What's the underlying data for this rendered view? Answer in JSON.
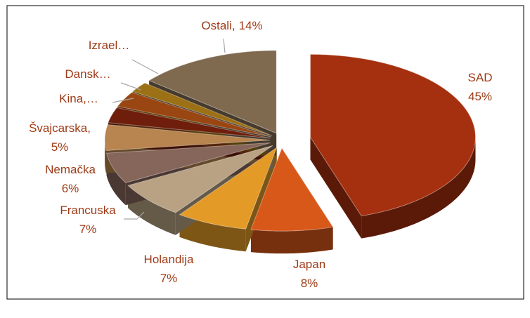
{
  "chart_data": {
    "type": "pie3d",
    "categories": [
      "SAD",
      "Japan",
      "Holandija",
      "Francuska",
      "Nemačka",
      "Švajcarska,",
      "Kina,…",
      "Dansk…",
      "Izrael…",
      "Ostali,"
    ],
    "values": [
      45,
      8,
      7,
      7,
      6,
      5,
      3,
      3,
      2,
      14
    ],
    "value_labels": [
      "45%",
      "8%",
      "7%",
      "7%",
      "6%",
      "5%",
      null,
      null,
      null,
      "14%"
    ],
    "colors": [
      "#a5300f",
      "#d8581a",
      "#e39a26",
      "#b8a283",
      "#86655a",
      "#b8844f",
      "#6e1e0b",
      "#9a4612",
      "#9c7015",
      "#7f6a50"
    ]
  }
}
